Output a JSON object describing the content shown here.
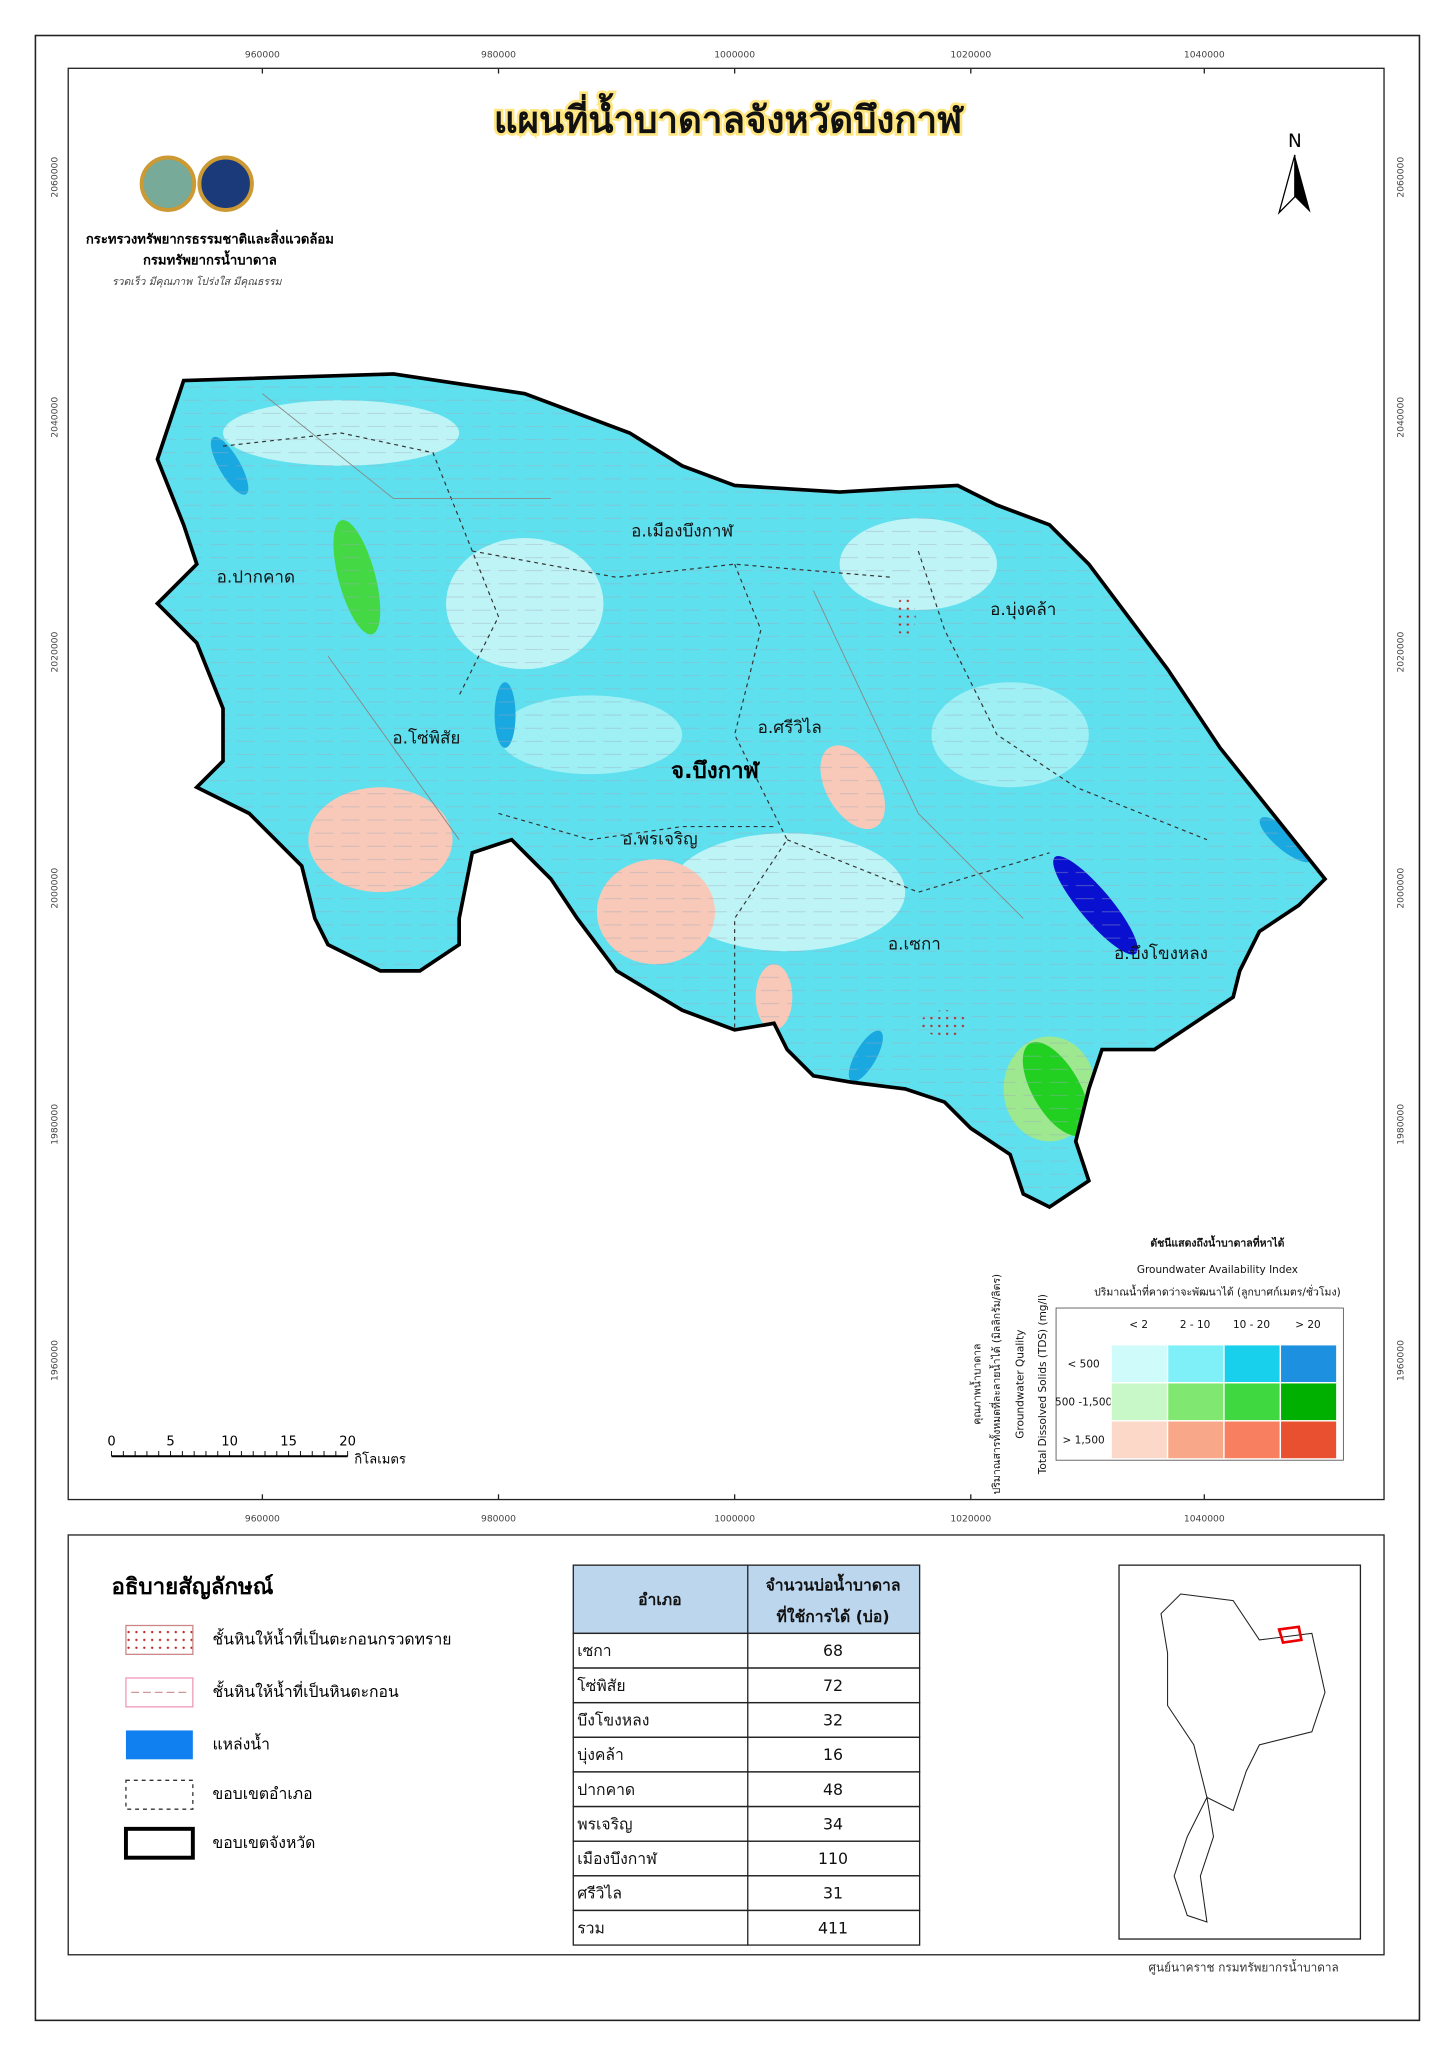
{
  "title": "แผนที่น้ำบาดาลจังหวัดบึงกาฬ",
  "agency": [
    "กระทรวงทรัพยากรธรรมชาติและสิ่งแวดล้อม",
    "กรมทรัพยากรน้ำบาดาล",
    "รวดเร็ว มีคุณภาพ โปร่งใส มีคุณธรรม"
  ],
  "north": "N",
  "grid": {
    "x_labels": [
      "960000",
      "980000",
      "1000000",
      "1020000",
      "1040000"
    ],
    "y_labels": [
      "2060000",
      "2040000",
      "2020000",
      "2000000",
      "1980000",
      "1960000"
    ]
  },
  "districts": [
    "อ.เมืองบึงกาฬ",
    "อ.ปากคาด",
    "อ.บุ่งคล้า",
    "อ.ศรีวิไล",
    "อ.โซ่พิสัย",
    "อ.พรเจริญ",
    "อ.เซกา",
    "อ.บึงโขงหลง"
  ],
  "province_label": "จ.บึงกาฬ",
  "scale_bar": {
    "ticks": [
      "0",
      "5",
      "10",
      "15",
      "20"
    ],
    "unit": "กิโลเมตร"
  },
  "index_legend": {
    "title": "ดัชนีแสดงถึงน้ำบาดาลที่หาได้",
    "title_en": "Groundwater Availability Index",
    "subtitle": "ปริมาณน้ำที่คาดว่าจะพัฒนาได้ (ลูกบาศก์เมตร/ชั่วโมง)",
    "columns": [
      "< 2",
      "2 - 10",
      "10 - 20",
      "> 20"
    ],
    "rows": [
      "< 500",
      "500 -1,500",
      "> 1,500"
    ],
    "row_axis": [
      "คุณภาพน้ำบาดาล",
      "ปริมาณสารทั้งหมดที่ละลายน้ำได้ (มิลลิกรัม/ลิตร)",
      "Groundwater Quality",
      "Total Dissolved Solids (TDS) (mg/l)"
    ],
    "colors": [
      [
        "#cffbfb",
        "#7ff0f8",
        "#19d0ec",
        "#1e90e0"
      ],
      [
        "#c8f8c8",
        "#80e870",
        "#40d840",
        "#00b000"
      ],
      [
        "#fcd8c8",
        "#f8a888",
        "#f88060",
        "#e85030"
      ]
    ]
  },
  "legend": {
    "title": "อธิบายสัญลักษณ์",
    "items": [
      "ชั้นหินให้น้ำที่เป็นตะกอนกรวดทราย",
      "ชั้นหินให้น้ำที่เป็นหินตะกอน",
      "แหล่งน้ำ",
      "ขอบเขตอำเภอ",
      "ขอบเขตจังหวัด"
    ]
  },
  "table": {
    "header": [
      "อำเภอ",
      [
        "จำนวนบ่อน้ำบาดาล",
        "ที่ใช้การได้ (บ่อ)"
      ]
    ],
    "rows": [
      [
        "เซกา",
        68
      ],
      [
        "โซ่พิสัย",
        72
      ],
      [
        "บึงโขงหลง",
        32
      ],
      [
        "บุ่งคล้า",
        16
      ],
      [
        "ปากคาด",
        48
      ],
      [
        "พรเจริญ",
        34
      ],
      [
        "เมืองบึงกาฬ",
        110
      ],
      [
        "ศรีวิไล",
        31
      ],
      [
        "รวม",
        411
      ]
    ]
  },
  "inset_caption": "ศูนย์นาคราช กรมทรัพยากรน้ำบาดาล"
}
